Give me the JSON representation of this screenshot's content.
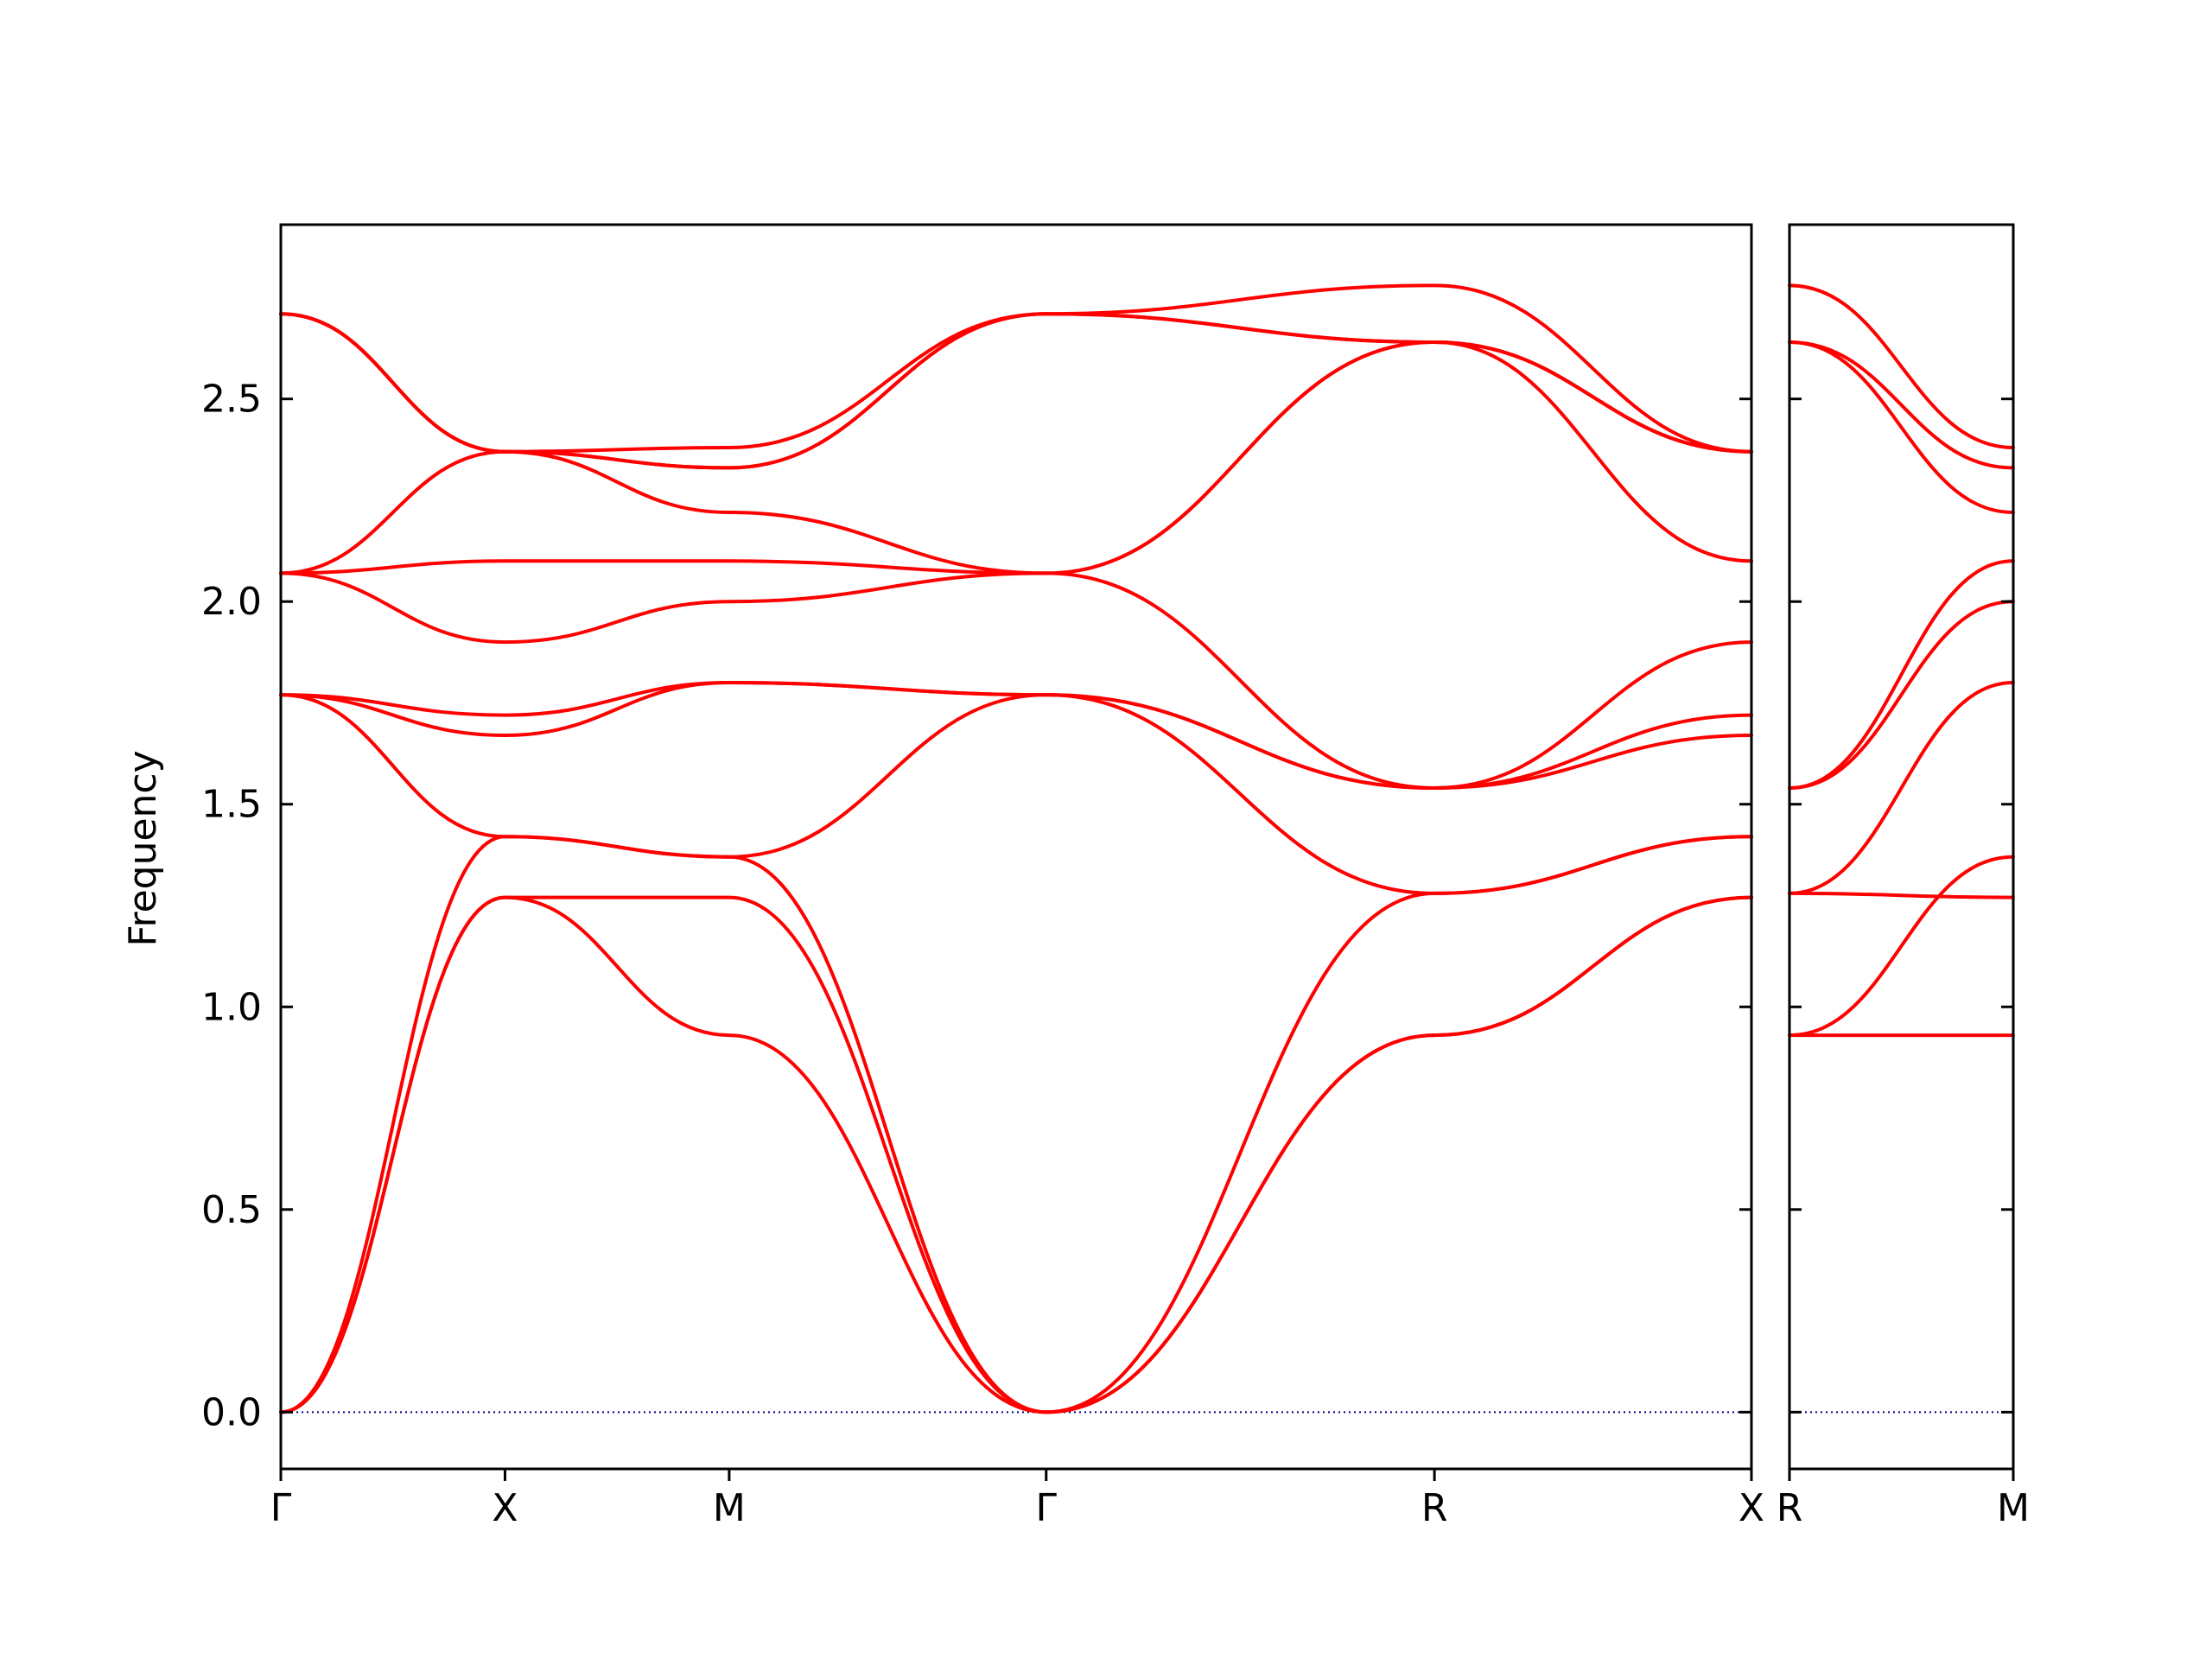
{
  "chart_data": {
    "type": "line",
    "ylabel": "Frequency",
    "ylim": [
      -0.14,
      2.93
    ],
    "yticks": [
      "0.0",
      "0.5",
      "1.0",
      "1.5",
      "2.0",
      "2.5"
    ],
    "ytick_values": [
      0.0,
      0.5,
      1.0,
      1.5,
      2.0,
      2.5
    ],
    "colors": {
      "bands": "#ff0000",
      "zero_line": "#00008b"
    },
    "grid": false,
    "legend": "none",
    "segments": [
      {
        "path_labels": [
          "Γ",
          "X",
          "M",
          "Γ",
          "R",
          "X"
        ],
        "path_positions": [
          0,
          0.5,
          1.0,
          1.707,
          2.573,
          3.28
        ],
        "last_label": "X",
        "bands": [
          {
            "x": [
              0,
              0.5,
              1.0,
              1.707,
              2.573,
              3.28
            ],
            "y": [
              0,
              1.27,
              0.93,
              0,
              0.93,
              1.27
            ]
          },
          {
            "x": [
              0,
              0.5,
              1.0,
              1.707,
              2.573,
              3.28
            ],
            "y": [
              0,
              1.27,
              1.27,
              0,
              0.93,
              1.27
            ]
          },
          {
            "x": [
              0,
              0.5,
              1.0,
              1.707,
              2.573,
              3.28
            ],
            "y": [
              0,
              1.42,
              1.37,
              0,
              1.28,
              1.42
            ]
          },
          {
            "x": [
              0,
              0.5,
              1.0,
              1.707,
              2.573,
              3.28
            ],
            "y": [
              1.77,
              1.42,
              1.37,
              1.77,
              1.28,
              1.42
            ]
          },
          {
            "x": [
              0,
              0.5,
              1.0,
              1.707,
              2.573,
              3.28
            ],
            "y": [
              1.77,
              1.67,
              1.8,
              1.77,
              1.54,
              1.67
            ]
          },
          {
            "x": [
              0,
              0.5,
              1.0,
              1.707,
              2.573,
              3.28
            ],
            "y": [
              1.77,
              1.72,
              1.8,
              1.77,
              1.54,
              1.72
            ]
          },
          {
            "x": [
              0,
              0.5,
              1.0,
              1.707,
              2.573,
              3.28
            ],
            "y": [
              2.07,
              1.9,
              2.0,
              2.07,
              1.54,
              1.9
            ]
          },
          {
            "x": [
              0,
              0.5,
              1.0,
              1.707,
              2.573,
              3.28
            ],
            "y": [
              2.07,
              2.1,
              2.1,
              2.07,
              2.64,
              2.1
            ]
          },
          {
            "x": [
              0,
              0.5,
              1.0,
              1.707,
              2.573,
              3.28
            ],
            "y": [
              2.07,
              2.37,
              2.22,
              2.07,
              2.64,
              2.37
            ]
          },
          {
            "x": [
              0,
              0.5,
              1.0,
              1.707,
              2.573,
              3.28
            ],
            "y": [
              2.71,
              2.37,
              2.33,
              2.71,
              2.64,
              2.37
            ]
          },
          {
            "x": [
              0,
              0.5,
              1.0,
              1.707,
              2.573,
              3.28
            ],
            "y": [
              2.71,
              2.37,
              2.33,
              2.71,
              2.64,
              2.37
            ]
          },
          {
            "x": [
              0,
              0.5,
              1.0,
              1.707,
              2.573,
              3.28
            ],
            "y": [
              2.71,
              2.37,
              2.38,
              2.71,
              2.78,
              2.37
            ]
          }
        ]
      },
      {
        "path_labels": [
          "R",
          "M"
        ],
        "path_positions": [
          0,
          0.5
        ],
        "bands": [
          {
            "x": [
              0,
              0.5
            ],
            "y": [
              0.93,
              0.93
            ]
          },
          {
            "x": [
              0,
              0.5
            ],
            "y": [
              0.93,
              1.37
            ]
          },
          {
            "x": [
              0,
              0.5
            ],
            "y": [
              1.28,
              1.27
            ]
          },
          {
            "x": [
              0,
              0.5
            ],
            "y": [
              1.28,
              1.8
            ]
          },
          {
            "x": [
              0,
              0.5
            ],
            "y": [
              1.54,
              2.0
            ]
          },
          {
            "x": [
              0,
              0.5
            ],
            "y": [
              1.54,
              2.1
            ]
          },
          {
            "x": [
              0,
              0.5
            ],
            "y": [
              2.64,
              2.22
            ]
          },
          {
            "x": [
              0,
              0.5
            ],
            "y": [
              2.64,
              2.33
            ]
          },
          {
            "x": [
              0,
              0.5
            ],
            "y": [
              2.78,
              2.38
            ]
          }
        ]
      }
    ]
  }
}
